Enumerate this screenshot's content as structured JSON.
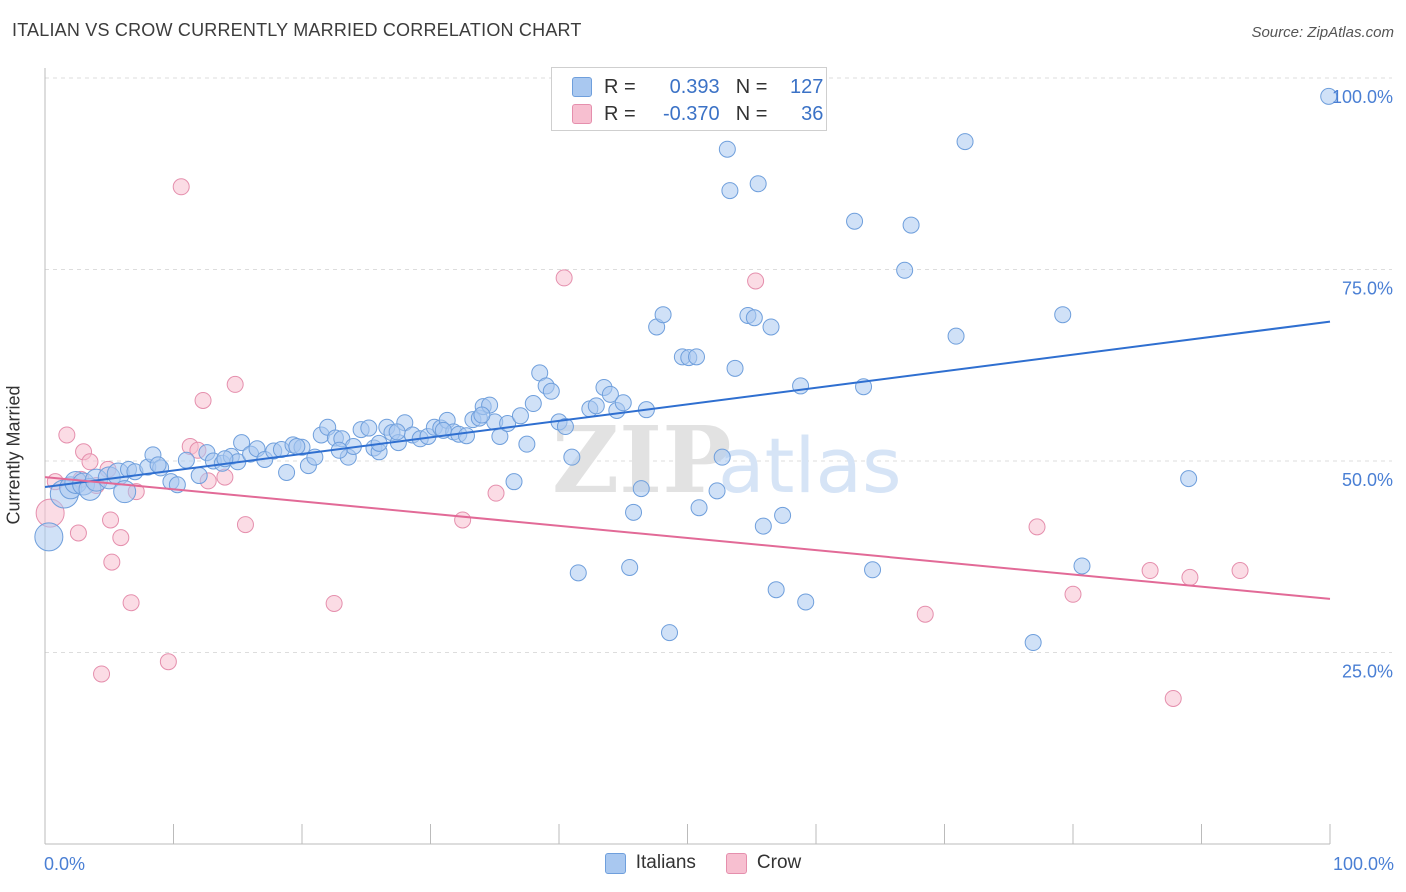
{
  "title": "ITALIAN VS CROW CURRENTLY MARRIED CORRELATION CHART",
  "source": "Source: ZipAtlas.com",
  "watermark_zip": "ZIP",
  "watermark_atlas": "atlas",
  "colors": {
    "italians_fill": "#a9c8f0",
    "italians_stroke": "#6f9fdc",
    "italians_line": "#2f6fd0",
    "crow_fill": "#f7bfd0",
    "crow_stroke": "#e58fad",
    "crow_line": "#e26a97",
    "tick_label": "#4a7fd4",
    "grid": "#dddddd"
  },
  "legend": {
    "italians": {
      "r_label": "R =",
      "r_value": "0.393",
      "n_label": "N =",
      "n_value": "127"
    },
    "crow": {
      "r_label": "R =",
      "r_value": "-0.370",
      "n_label": "N =",
      "n_value": "36"
    }
  },
  "bottom_legend": {
    "italians": "Italians",
    "crow": "Crow"
  },
  "chart_data": {
    "type": "scatter",
    "title": "ITALIAN VS CROW CURRENTLY MARRIED CORRELATION CHART",
    "xlabel": "",
    "ylabel": "Currently Married",
    "xlim": [
      0,
      100
    ],
    "ylim": [
      0,
      100
    ],
    "x_tick_labels": {
      "left": "0.0%",
      "right": "100.0%"
    },
    "y_ticks": [
      25,
      50,
      75,
      100
    ],
    "y_tick_labels": [
      "25.0%",
      "50.0%",
      "75.0%",
      "100.0%"
    ],
    "grid": true,
    "series": [
      {
        "name": "Italians",
        "r": 0.393,
        "n": 127,
        "trend": {
          "x": [
            0,
            100
          ],
          "y": [
            46.6,
            68.2
          ]
        },
        "points": [
          [
            0.3,
            40.1,
            3
          ],
          [
            1.5,
            45.7,
            3
          ],
          [
            2.0,
            46.5,
            2
          ],
          [
            2.4,
            47.2,
            2
          ],
          [
            3.0,
            47.0,
            2
          ],
          [
            3.5,
            46.3,
            2
          ],
          [
            4.0,
            47.5,
            2
          ],
          [
            5.0,
            47.8,
            2
          ],
          [
            5.7,
            48.3,
            2
          ],
          [
            6.2,
            46.0,
            2
          ],
          [
            6.5,
            48.9,
            1
          ],
          [
            7.0,
            48.6,
            1
          ],
          [
            8.0,
            49.2,
            1
          ],
          [
            8.4,
            50.8,
            1
          ],
          [
            9.0,
            49.1,
            1
          ],
          [
            9.8,
            47.3,
            1
          ],
          [
            10.3,
            46.9,
            1
          ],
          [
            12.0,
            48.1,
            1
          ],
          [
            12.6,
            51.1,
            1
          ],
          [
            13.1,
            50.0,
            1
          ],
          [
            13.8,
            49.7,
            1
          ],
          [
            14.5,
            50.6,
            1
          ],
          [
            15.0,
            49.9,
            1
          ],
          [
            15.3,
            52.4,
            1
          ],
          [
            16.0,
            50.9,
            1
          ],
          [
            16.5,
            51.6,
            1
          ],
          [
            17.1,
            50.2,
            1
          ],
          [
            17.8,
            51.3,
            1
          ],
          [
            18.4,
            51.5,
            1
          ],
          [
            18.8,
            48.5,
            1
          ],
          [
            19.3,
            52.1,
            1
          ],
          [
            20.0,
            51.8,
            1
          ],
          [
            20.5,
            49.4,
            1
          ],
          [
            21.0,
            50.5,
            1
          ],
          [
            21.5,
            53.4,
            1
          ],
          [
            22.0,
            54.4,
            1
          ],
          [
            22.6,
            53.0,
            1
          ],
          [
            23.1,
            52.9,
            1
          ],
          [
            23.6,
            50.5,
            1
          ],
          [
            24.0,
            51.9,
            1
          ],
          [
            24.6,
            54.1,
            1
          ],
          [
            25.2,
            54.3,
            1
          ],
          [
            25.6,
            51.7,
            1
          ],
          [
            26.0,
            51.2,
            1
          ],
          [
            26.6,
            54.4,
            1
          ],
          [
            27.0,
            53.7,
            1
          ],
          [
            27.5,
            52.4,
            1
          ],
          [
            28.0,
            55.0,
            1
          ],
          [
            28.6,
            53.4,
            1
          ],
          [
            29.2,
            52.9,
            1
          ],
          [
            29.8,
            53.2,
            1
          ],
          [
            30.3,
            54.4,
            1
          ],
          [
            30.8,
            54.3,
            1
          ],
          [
            31.3,
            55.3,
            1
          ],
          [
            31.8,
            53.8,
            1
          ],
          [
            32.2,
            53.5,
            1
          ],
          [
            32.8,
            53.3,
            1
          ],
          [
            33.3,
            55.4,
            1
          ],
          [
            33.8,
            55.6,
            1
          ],
          [
            34.1,
            57.1,
            1
          ],
          [
            34.6,
            57.3,
            1
          ],
          [
            35.0,
            55.1,
            1
          ],
          [
            35.4,
            53.2,
            1
          ],
          [
            36.0,
            54.9,
            1
          ],
          [
            36.5,
            47.3,
            1
          ],
          [
            37.0,
            55.9,
            1
          ],
          [
            37.5,
            52.2,
            1
          ],
          [
            38.0,
            57.5,
            1
          ],
          [
            38.5,
            61.5,
            1
          ],
          [
            39.0,
            59.8,
            1
          ],
          [
            39.4,
            59.1,
            1
          ],
          [
            40.0,
            55.1,
            1
          ],
          [
            40.5,
            54.5,
            1
          ],
          [
            41.0,
            50.5,
            1
          ],
          [
            41.5,
            35.4,
            1
          ],
          [
            42.4,
            56.8,
            1
          ],
          [
            42.9,
            57.2,
            1
          ],
          [
            43.5,
            59.6,
            1
          ],
          [
            44.0,
            58.7,
            1
          ],
          [
            44.5,
            56.6,
            1
          ],
          [
            45.0,
            57.6,
            1
          ],
          [
            45.5,
            36.1,
            1
          ],
          [
            45.8,
            43.3,
            1
          ],
          [
            46.4,
            46.4,
            1
          ],
          [
            46.8,
            56.7,
            1
          ],
          [
            47.6,
            67.5,
            1
          ],
          [
            48.1,
            69.1,
            1
          ],
          [
            48.6,
            27.6,
            1
          ],
          [
            49.6,
            63.6,
            1
          ],
          [
            50.1,
            63.5,
            1
          ],
          [
            50.7,
            63.6,
            1
          ],
          [
            50.9,
            43.9,
            1
          ],
          [
            52.3,
            46.1,
            1
          ],
          [
            52.7,
            50.5,
            1
          ],
          [
            53.1,
            90.7,
            1
          ],
          [
            53.3,
            85.3,
            1
          ],
          [
            53.7,
            62.1,
            1
          ],
          [
            54.7,
            69.0,
            1
          ],
          [
            55.2,
            68.7,
            1
          ],
          [
            55.5,
            86.2,
            1
          ],
          [
            55.9,
            41.5,
            1
          ],
          [
            56.5,
            67.5,
            1
          ],
          [
            56.9,
            33.2,
            1
          ],
          [
            57.4,
            42.9,
            1
          ],
          [
            58.8,
            59.8,
            1
          ],
          [
            59.2,
            31.6,
            1
          ],
          [
            63.0,
            81.3,
            1
          ],
          [
            63.7,
            59.7,
            1
          ],
          [
            64.4,
            35.8,
            1
          ],
          [
            66.9,
            74.9,
            1
          ],
          [
            67.4,
            80.8,
            1
          ],
          [
            70.9,
            66.3,
            1
          ],
          [
            71.6,
            91.7,
            1
          ],
          [
            76.9,
            26.3,
            1
          ],
          [
            79.2,
            69.1,
            1
          ],
          [
            80.7,
            36.3,
            1
          ],
          [
            89.0,
            47.7,
            1
          ],
          [
            99.9,
            97.6,
            1
          ],
          [
            34.0,
            56.0,
            1
          ],
          [
            27.4,
            53.8,
            1
          ],
          [
            19.6,
            51.9,
            1
          ],
          [
            22.9,
            51.4,
            1
          ],
          [
            11.0,
            50.1,
            1
          ],
          [
            14.0,
            50.3,
            1
          ],
          [
            8.8,
            49.5,
            1
          ],
          [
            26.0,
            52.3,
            1
          ],
          [
            31.0,
            54.0,
            1
          ]
        ]
      },
      {
        "name": "Crow",
        "r": -0.37,
        "n": 36,
        "trend": {
          "x": [
            0,
            100
          ],
          "y": [
            47.9,
            32.0
          ]
        },
        "points": [
          [
            0.4,
            43.2,
            3
          ],
          [
            0.8,
            47.3,
            1
          ],
          [
            1.7,
            53.4,
            1
          ],
          [
            2.6,
            40.6,
            1
          ],
          [
            2.8,
            47.6,
            1
          ],
          [
            3.0,
            51.2,
            1
          ],
          [
            3.5,
            49.9,
            1
          ],
          [
            4.0,
            46.8,
            1
          ],
          [
            4.4,
            22.2,
            1
          ],
          [
            4.9,
            48.9,
            1
          ],
          [
            5.1,
            42.3,
            1
          ],
          [
            5.2,
            36.8,
            1
          ],
          [
            5.9,
            40.0,
            1
          ],
          [
            6.7,
            31.5,
            1
          ],
          [
            7.1,
            46.0,
            1
          ],
          [
            9.6,
            23.8,
            1
          ],
          [
            10.6,
            85.8,
            1
          ],
          [
            11.3,
            51.9,
            1
          ],
          [
            11.9,
            51.4,
            1
          ],
          [
            12.3,
            57.9,
            1
          ],
          [
            12.7,
            47.4,
            1
          ],
          [
            14.0,
            47.9,
            1
          ],
          [
            14.8,
            60.0,
            1
          ],
          [
            15.6,
            41.7,
            1
          ],
          [
            22.5,
            31.4,
            1
          ],
          [
            32.5,
            42.3,
            1
          ],
          [
            35.1,
            45.8,
            1
          ],
          [
            40.4,
            73.9,
            1
          ],
          [
            55.3,
            73.5,
            1
          ],
          [
            68.5,
            30.0,
            1
          ],
          [
            77.2,
            41.4,
            1
          ],
          [
            80.0,
            32.6,
            1
          ],
          [
            86.0,
            35.7,
            1
          ],
          [
            87.8,
            19.0,
            1
          ],
          [
            89.1,
            34.8,
            1
          ],
          [
            93.0,
            35.7,
            1
          ]
        ]
      }
    ]
  }
}
